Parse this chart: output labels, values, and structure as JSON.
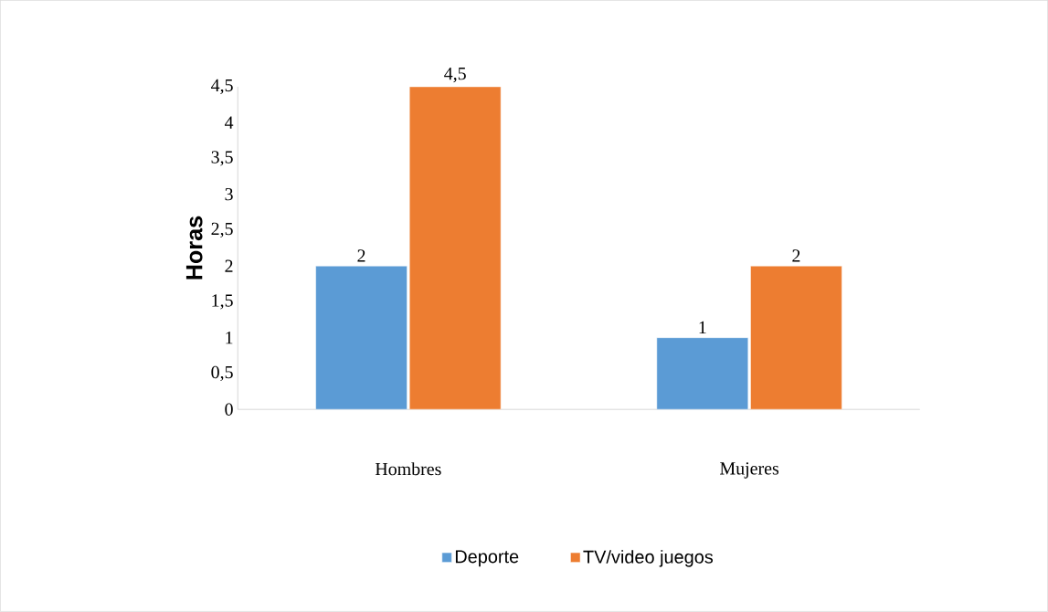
{
  "chart_data": {
    "type": "bar",
    "ylabel": "Horas",
    "categories": [
      "Hombres",
      "Mujeres"
    ],
    "series": [
      {
        "name": "Deporte",
        "color": "#5b9bd5",
        "values": [
          2,
          1
        ],
        "value_labels": [
          "2",
          "1"
        ]
      },
      {
        "name": "TV/video juegos",
        "color": "#ed7d31",
        "values": [
          4.5,
          2
        ],
        "value_labels": [
          "4,5",
          "2"
        ]
      }
    ],
    "ylim": [
      0,
      4.5
    ],
    "yticks": [
      0,
      {
        "value": 0.5,
        "label": "0,5"
      },
      1,
      {
        "value": 1.5,
        "label": "1,5"
      },
      2,
      {
        "value": 2.5,
        "label": "2,5"
      },
      3,
      {
        "value": 3.5,
        "label": "3,5"
      },
      4,
      {
        "value": 4.5,
        "label": "4,5"
      }
    ],
    "legend": "bottom",
    "grid": false
  }
}
